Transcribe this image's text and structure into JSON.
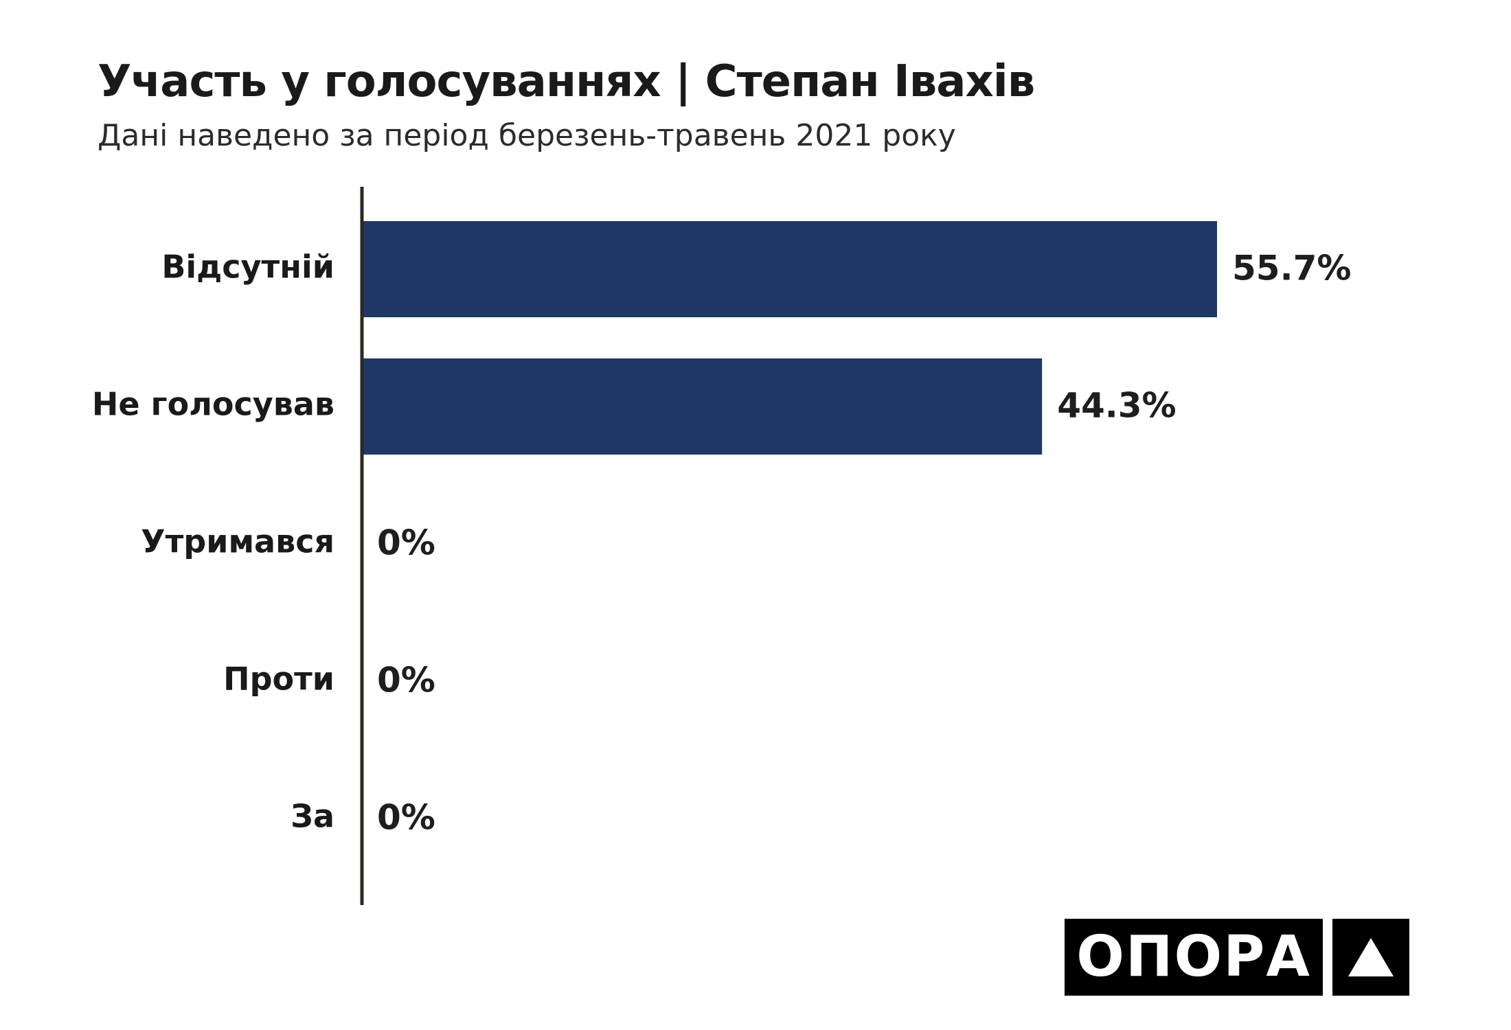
{
  "chart_data": {
    "type": "bar",
    "orientation": "horizontal",
    "title": "Участь у голосуваннях | Степан Івахів",
    "subtitle": "Дані наведено за період березень-травень 2021 року",
    "categories": [
      "Відсутній",
      "Не голосував",
      "Утримався",
      "Проти",
      "За"
    ],
    "values": [
      55.7,
      44.3,
      0,
      0,
      0
    ],
    "value_labels": [
      "55.7%",
      "44.3%",
      "0%",
      "0%",
      "0%"
    ],
    "unit": "%",
    "xlim": [
      0,
      55.7
    ],
    "grid": false,
    "legend": "none",
    "bar_color": "#1f3866",
    "axis_color": "#2a2a24"
  },
  "logo": {
    "text": "ОПОРА",
    "mark_icon": "triangle-icon"
  }
}
